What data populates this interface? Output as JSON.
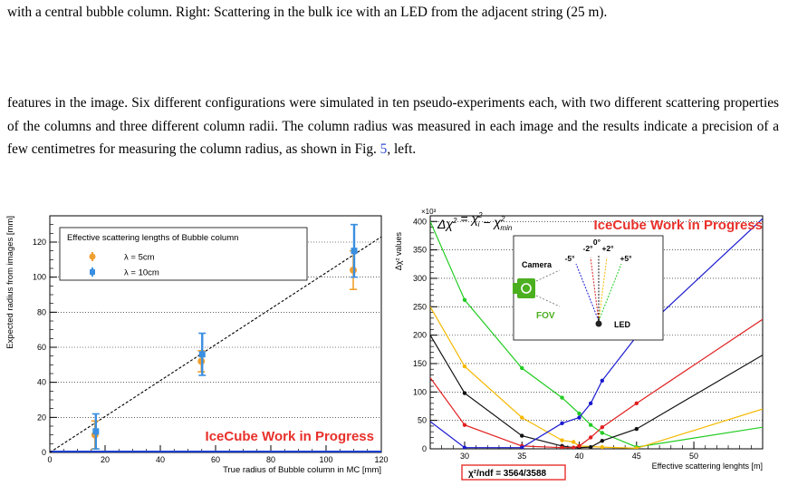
{
  "caption_tail": "with a central bubble column. Right: Scattering in the bulk ice with an LED from the adjacent string (25 m).",
  "paragraph": {
    "before_ref": "features in the image. Six different configurations were simulated in ten pseudo-experiments each, with two different scattering properties of the columns and three different column radii. The column radius was measured in each image and the results indicate a precision of a few centimetres for measuring the column radius, as shown in Fig. ",
    "ref": "5",
    "after_ref": ", left."
  },
  "watermark": "IceCube Work in Progress",
  "colors": {
    "series_5cm": "#f0a030",
    "series_10cm": "#3a8fe0",
    "watermark": "#e8302a",
    "link": "#2e4fd0",
    "fov_green": "#4caf20"
  },
  "chart_data": [
    {
      "type": "scatter",
      "xlabel": "True radius of Bubble column in MC [mm]",
      "ylabel": "Expected radius from images [mm]",
      "xlim": [
        0,
        120
      ],
      "ylim": [
        0,
        135
      ],
      "xticks": [
        "0",
        "20",
        "40",
        "60",
        "80",
        "100",
        "120"
      ],
      "yticks": [
        "0",
        "20",
        "40",
        "60",
        "80",
        "100",
        "120"
      ],
      "grid": true,
      "legend_title": "Effective scattering lengths of Bubble column",
      "legend_position": "top-left",
      "series": [
        {
          "name": "λ = 5cm",
          "color": "#f0a030",
          "marker": "circle",
          "points": [
            {
              "x": 16.5,
              "y": 10,
              "err": 8
            },
            {
              "x": 55,
              "y": 52,
              "err": 6
            },
            {
              "x": 110,
              "y": 104,
              "err": 11
            }
          ]
        },
        {
          "name": "λ = 10cm",
          "color": "#3a8fe0",
          "marker": "square",
          "points": [
            {
              "x": 16.5,
              "y": 12,
              "err": 10
            },
            {
              "x": 55,
              "y": 56,
              "err": 12
            },
            {
              "x": 110,
              "y": 115,
              "err": 15
            }
          ]
        }
      ],
      "reference_line": {
        "style": "dashed",
        "from": [
          0,
          0
        ],
        "to": [
          120,
          123
        ]
      }
    },
    {
      "type": "line",
      "title_formula_parts": {
        "lhs": "Δχ",
        "eq": "= χ",
        "minus": "− χ",
        "sub_i": "i",
        "sub_min": "min",
        "sup": "2"
      },
      "xlabel": "Effective scattering lenghts [m]",
      "ylabel": "Δχ² values",
      "y_multiplier": "×10³",
      "xlim": [
        27,
        56
      ],
      "ylim": [
        0,
        410
      ],
      "xticks": [
        "30",
        "35",
        "40",
        "45",
        "50"
      ],
      "yticks": [
        "0",
        "50",
        "100",
        "150",
        "200",
        "250",
        "300",
        "350",
        "400"
      ],
      "grid": true,
      "series": [
        {
          "name": "+5°",
          "color": "#22cc22",
          "points": [
            [
              27,
              400
            ],
            [
              30,
              262
            ],
            [
              35,
              142
            ],
            [
              38.5,
              90
            ],
            [
              40,
              62
            ],
            [
              41,
              42
            ],
            [
              42,
              28
            ],
            [
              45,
              3
            ],
            [
              56,
              38
            ]
          ]
        },
        {
          "name": "+2°",
          "color": "#f5b800",
          "points": [
            [
              27,
              250
            ],
            [
              30,
              145
            ],
            [
              35,
              55
            ],
            [
              38.5,
              15
            ],
            [
              39.5,
              12
            ],
            [
              40,
              5
            ],
            [
              42,
              3
            ],
            [
              45,
              1
            ],
            [
              56,
              70
            ]
          ]
        },
        {
          "name": "0°",
          "color": "#111111",
          "points": [
            [
              27,
              200
            ],
            [
              30,
              98
            ],
            [
              35,
              23
            ],
            [
              38.5,
              5
            ],
            [
              39.5,
              2
            ],
            [
              40,
              2
            ],
            [
              41,
              3
            ],
            [
              42,
              14
            ],
            [
              45,
              35
            ],
            [
              56,
              165
            ]
          ]
        },
        {
          "name": "-2°",
          "color": "#e02020",
          "points": [
            [
              27,
              125
            ],
            [
              30,
              42
            ],
            [
              35,
              5
            ],
            [
              38.5,
              2
            ],
            [
              39.5,
              2
            ],
            [
              40,
              5
            ],
            [
              41,
              20
            ],
            [
              42,
              38
            ],
            [
              45,
              80
            ],
            [
              56,
              228
            ]
          ]
        },
        {
          "name": "-5°",
          "color": "#1a1ad0",
          "points": [
            [
              27,
              48
            ],
            [
              30,
              2
            ],
            [
              35,
              2
            ],
            [
              38.5,
              45
            ],
            [
              40,
              55
            ],
            [
              41,
              80
            ],
            [
              42,
              120
            ],
            [
              45,
              198
            ],
            [
              56,
              405
            ]
          ]
        }
      ],
      "inset": {
        "camera_label": "Camera",
        "fov_label": "FOV",
        "led_label": "LED",
        "angles": [
          "-5°",
          "-2°",
          "0°",
          "+2°",
          "+5°"
        ]
      },
      "fit_label": "χ²/ndf = 3564/3588"
    }
  ]
}
